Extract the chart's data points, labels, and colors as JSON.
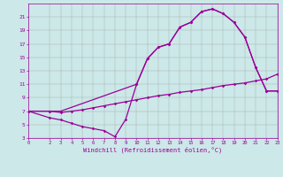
{
  "xlabel": "Windchill (Refroidissement éolien,°C)",
  "bg_color": "#cce8e8",
  "line_color": "#990099",
  "grid_color": "#aaaaaa",
  "curve1_x": [
    0,
    2,
    3,
    4,
    5,
    6,
    7,
    8,
    9,
    10,
    11,
    12,
    13,
    14,
    15,
    16,
    17,
    18,
    19,
    20,
    21,
    22,
    23
  ],
  "curve1_y": [
    7,
    6,
    5.7,
    5.2,
    4.7,
    4.4,
    4.1,
    3.2,
    5.8,
    11,
    14.8,
    16.5,
    17,
    19.5,
    20.2,
    21.8,
    22.2,
    21.5,
    20.2,
    18,
    13.5,
    10,
    10
  ],
  "curve2_x": [
    0,
    2,
    3,
    4,
    5,
    6,
    7,
    8,
    9,
    10,
    11,
    12,
    13,
    14,
    15,
    16,
    17,
    18,
    19,
    20,
    21,
    22,
    23
  ],
  "curve2_y": [
    7,
    7,
    6.8,
    7.0,
    7.2,
    7.5,
    7.8,
    8.1,
    8.4,
    8.7,
    9.0,
    9.3,
    9.5,
    9.8,
    10.0,
    10.2,
    10.5,
    10.8,
    11.0,
    11.2,
    11.5,
    11.8,
    12.5
  ],
  "curve3_x": [
    0,
    2,
    3,
    10,
    11,
    12,
    13,
    14,
    15,
    16,
    17,
    18,
    19,
    20,
    21,
    22,
    23
  ],
  "curve3_y": [
    7,
    7,
    7,
    11,
    14.8,
    16.5,
    17,
    19.5,
    20.2,
    21.8,
    22.2,
    21.5,
    20.2,
    18.0,
    13.5,
    10,
    10
  ],
  "xlim": [
    0,
    23
  ],
  "ylim": [
    3,
    23
  ],
  "yticks": [
    3,
    5,
    7,
    9,
    11,
    13,
    15,
    17,
    19,
    21
  ],
  "xticks": [
    0,
    2,
    3,
    4,
    5,
    6,
    7,
    8,
    9,
    10,
    11,
    12,
    13,
    14,
    15,
    16,
    17,
    18,
    19,
    20,
    21,
    22,
    23
  ],
  "marker": "D",
  "markersize": 1.8,
  "linewidth": 0.9
}
